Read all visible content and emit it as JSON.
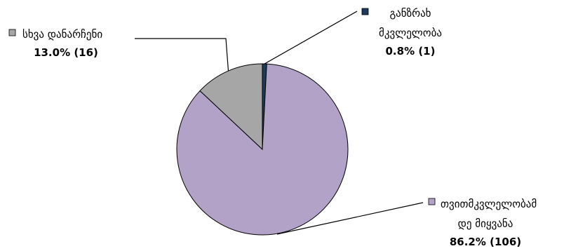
{
  "chart_data": {
    "type": "pie",
    "slices": [
      {
        "name": "განზრახ მკვლელობა",
        "name_lines": [
          "განზრახ",
          "მკვლელობა"
        ],
        "value": 1,
        "percent": 0.8,
        "percent_label": "0.8% (1)",
        "color": "#1f3b5c"
      },
      {
        "name": "თვითმკვლელობამ დე მიყვანა",
        "name_lines": [
          "თვითმკვლელობამ",
          "დე მიყვანა"
        ],
        "value": 106,
        "percent": 86.2,
        "percent_label": "86.2% (106)",
        "color": "#b3a2c7"
      },
      {
        "name": "სხვა დანარჩენი",
        "name_lines": [
          "სხვა დანარჩენი"
        ],
        "value": 16,
        "percent": 13.0,
        "percent_label": "13.0% (16)",
        "color": "#a6a6a6"
      }
    ],
    "legend": "callouts"
  }
}
